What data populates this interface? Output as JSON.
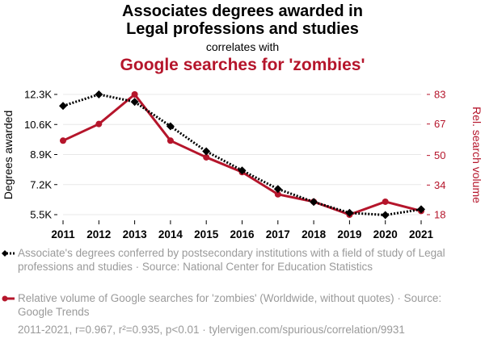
{
  "header": {
    "title_line1": "Associates degrees awarded in",
    "title_line2": "Legal professions and studies",
    "correlates": "correlates with",
    "title_line3": "Google searches for 'zombies'"
  },
  "colors": {
    "series1": "#000000",
    "series2": "#b5152b",
    "grid": "#e8e8e8",
    "muted": "#9a9a9a"
  },
  "chart_data": {
    "type": "line",
    "x": [
      2011,
      2012,
      2013,
      2014,
      2015,
      2016,
      2017,
      2018,
      2019,
      2020,
      2021
    ],
    "x_tick_labels": [
      "2011",
      "2012",
      "2013",
      "2014",
      "2015",
      "2016",
      "2017",
      "2018",
      "2019",
      "2020",
      "2021"
    ],
    "left_axis": {
      "label": "Degrees awarded",
      "range": [
        5500,
        12300
      ],
      "ticks": [
        5500,
        7200,
        8900,
        10600,
        12300
      ],
      "tick_labels": [
        "5.5K",
        "7.2K",
        "8.9K",
        "10.6K",
        "12.3K"
      ]
    },
    "right_axis": {
      "label": "Rel. search volume",
      "range": [
        18,
        83
      ],
      "ticks": [
        18,
        34,
        50,
        67,
        83
      ],
      "tick_labels": [
        "18",
        "34",
        "50",
        "67",
        "83"
      ]
    },
    "series": [
      {
        "name": "Associate's degrees conferred by postsecondary institutions with a field of study of Legal professions and studies · Source: National Center for Education Statistics",
        "axis": "left",
        "style": "dotted",
        "marker": "diamond",
        "values": [
          11650,
          12300,
          11880,
          10500,
          9080,
          8000,
          6950,
          6220,
          5600,
          5480,
          5800
        ]
      },
      {
        "name": "Relative volume of Google searches for 'zombies' (Worldwide, without quotes) · Source: Google Trends",
        "axis": "right",
        "style": "solid",
        "marker": "circle",
        "values": [
          58,
          67,
          83,
          58,
          49,
          41,
          29,
          25,
          18,
          25,
          20
        ]
      }
    ]
  },
  "legend": {
    "series1_text": "Associate's degrees conferred by postsecondary institutions with a field of study of Legal professions and studies · Source: National Center for Education Statistics",
    "series2_text": "Relative volume of Google searches for 'zombies' (Worldwide, without quotes) · Source: Google Trends"
  },
  "footer": "2011-2021, r=0.967, r²=0.935, p<0.01 · tylervigen.com/spurious/correlation/9931"
}
